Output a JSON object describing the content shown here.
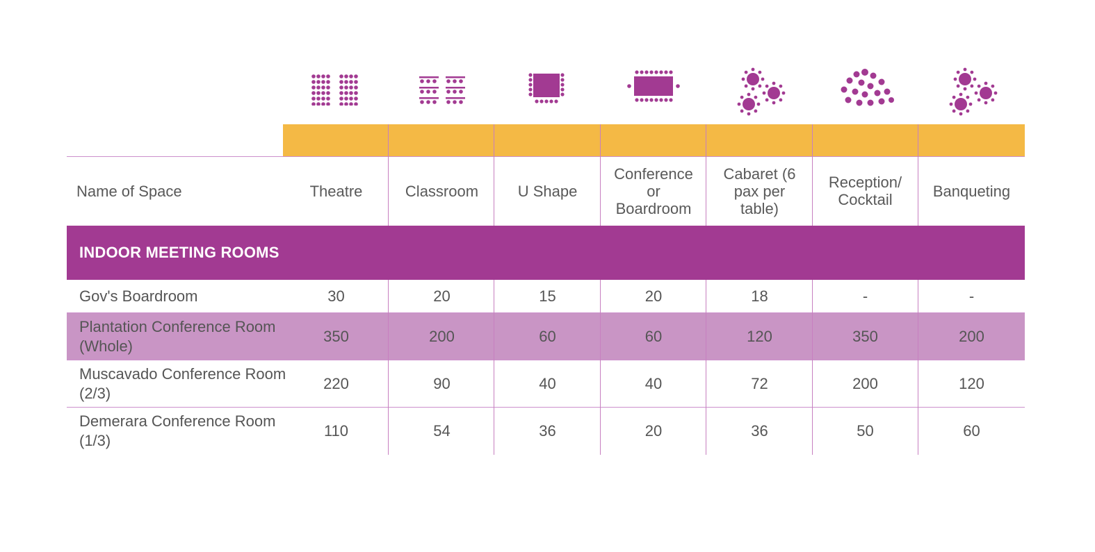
{
  "columns": {
    "name": "Name of Space",
    "theatre": "Theatre",
    "classroom": "Classroom",
    "ushape": "U Shape",
    "conference": "Conference or Boardroom",
    "cabaret": "Cabaret (6 pax per table)",
    "reception": "Reception/ Cocktail",
    "banqueting": "Banqueting"
  },
  "icons": [
    "theatre-icon",
    "classroom-icon",
    "u-shape-icon",
    "boardroom-icon",
    "cabaret-icon",
    "reception-icon",
    "banquet-icon"
  ],
  "colors": {
    "accent": "#a23a92",
    "highlight": "#c995c5",
    "header_band": "#f4b945",
    "icon": "#a23a92"
  },
  "section": {
    "title": "INDOOR MEETING ROOMS"
  },
  "rows": [
    {
      "name": "Gov's Boardroom",
      "theatre": "30",
      "classroom": "20",
      "ushape": "15",
      "conference": "20",
      "cabaret": "18",
      "reception": "-",
      "banqueting": "-"
    },
    {
      "name": "Plantation Conference Room (Whole)",
      "theatre": "350",
      "classroom": "200",
      "ushape": "60",
      "conference": "60",
      "cabaret": "120",
      "reception": "350",
      "banqueting": "200"
    },
    {
      "name": "Muscavado Conference Room (2/3)",
      "theatre": "220",
      "classroom": "90",
      "ushape": "40",
      "conference": "40",
      "cabaret": "72",
      "reception": "200",
      "banqueting": "120"
    },
    {
      "name": "Demerara Conference Room (1/3)",
      "theatre": "110",
      "classroom": "54",
      "ushape": "36",
      "conference": "20",
      "cabaret": "36",
      "reception": "50",
      "banqueting": "60"
    }
  ]
}
